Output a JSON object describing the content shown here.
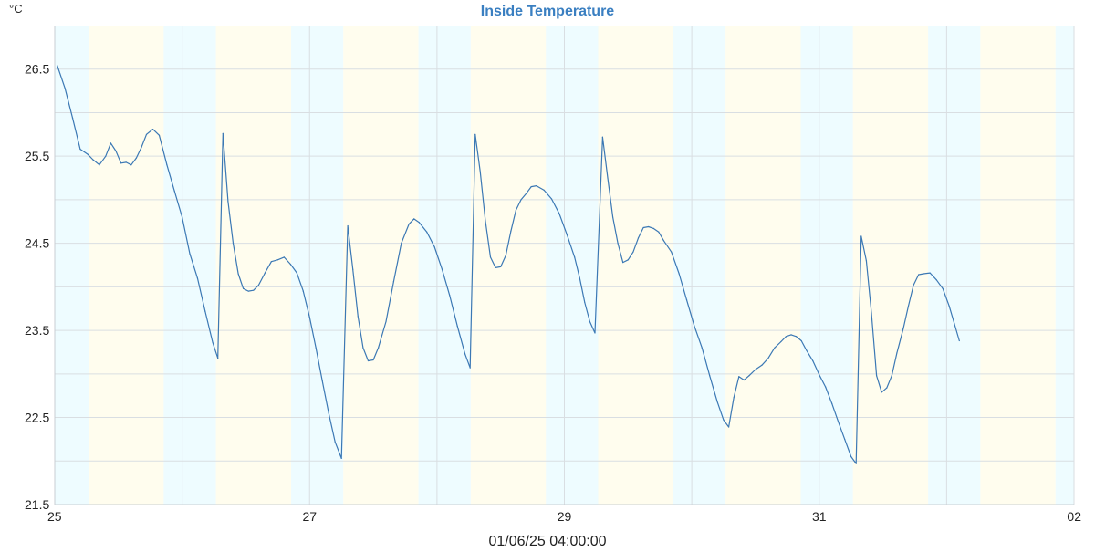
{
  "chart_data": {
    "type": "line",
    "title": "Inside Temperature",
    "unit_label": "°C",
    "footer_label": "01/06/25 04:00:00",
    "x_unit": "days since 25",
    "xlim": [
      0,
      8
    ],
    "ylim": [
      21.5,
      27
    ],
    "y_ticks": [
      {
        "value": 21.5,
        "label": "21.5"
      },
      {
        "value": 22.5,
        "label": "22.5"
      },
      {
        "value": 23.5,
        "label": "23.5"
      },
      {
        "value": 24.5,
        "label": "24.5"
      },
      {
        "value": 25.5,
        "label": "25.5"
      },
      {
        "value": 26.5,
        "label": "26.5"
      }
    ],
    "y_grid": [
      22,
      23,
      24,
      25,
      26
    ],
    "x_ticks": [
      {
        "value": 0,
        "label": "25"
      },
      {
        "value": 2,
        "label": "27"
      },
      {
        "value": 4,
        "label": "29"
      },
      {
        "value": 6,
        "label": "31"
      },
      {
        "value": 8,
        "label": "02"
      }
    ],
    "x_grid": [
      1,
      3,
      5,
      7
    ],
    "grid": true,
    "colors": {
      "line": "#3b78b4",
      "night": "#eefcff",
      "day": "#fffdee",
      "grid": "#d9dee2",
      "title": "#3a7fc1"
    },
    "bands": [
      {
        "start": 0,
        "end": 0.265,
        "kind": "night"
      },
      {
        "start": 0.265,
        "end": 0.855,
        "kind": "day"
      },
      {
        "start": 0.855,
        "end": 1.265,
        "kind": "night"
      },
      {
        "start": 1.265,
        "end": 1.855,
        "kind": "day"
      },
      {
        "start": 1.855,
        "end": 2.265,
        "kind": "night"
      },
      {
        "start": 2.265,
        "end": 2.855,
        "kind": "day"
      },
      {
        "start": 2.855,
        "end": 3.265,
        "kind": "night"
      },
      {
        "start": 3.265,
        "end": 3.855,
        "kind": "day"
      },
      {
        "start": 3.855,
        "end": 4.265,
        "kind": "night"
      },
      {
        "start": 4.265,
        "end": 4.855,
        "kind": "day"
      },
      {
        "start": 4.855,
        "end": 5.265,
        "kind": "night"
      },
      {
        "start": 5.265,
        "end": 5.855,
        "kind": "day"
      },
      {
        "start": 5.855,
        "end": 6.265,
        "kind": "night"
      },
      {
        "start": 6.265,
        "end": 6.855,
        "kind": "day"
      },
      {
        "start": 6.855,
        "end": 7.265,
        "kind": "night"
      },
      {
        "start": 7.265,
        "end": 7.855,
        "kind": "day"
      },
      {
        "start": 7.855,
        "end": 8.0,
        "kind": "night"
      }
    ],
    "series": [
      {
        "name": "Inside Temperature",
        "points": [
          [
            0.02,
            26.54
          ],
          [
            0.08,
            26.28
          ],
          [
            0.14,
            25.94
          ],
          [
            0.2,
            25.58
          ],
          [
            0.26,
            25.52
          ],
          [
            0.3,
            25.46
          ],
          [
            0.35,
            25.4
          ],
          [
            0.4,
            25.5
          ],
          [
            0.44,
            25.65
          ],
          [
            0.48,
            25.56
          ],
          [
            0.52,
            25.42
          ],
          [
            0.56,
            25.43
          ],
          [
            0.6,
            25.4
          ],
          [
            0.64,
            25.48
          ],
          [
            0.68,
            25.6
          ],
          [
            0.72,
            25.75
          ],
          [
            0.77,
            25.81
          ],
          [
            0.82,
            25.74
          ],
          [
            0.88,
            25.4
          ],
          [
            0.94,
            25.1
          ],
          [
            1.0,
            24.8
          ],
          [
            1.06,
            24.38
          ],
          [
            1.12,
            24.1
          ],
          [
            1.18,
            23.72
          ],
          [
            1.24,
            23.36
          ],
          [
            1.28,
            23.18
          ],
          [
            1.32,
            25.76
          ],
          [
            1.36,
            24.98
          ],
          [
            1.4,
            24.5
          ],
          [
            1.44,
            24.15
          ],
          [
            1.48,
            23.98
          ],
          [
            1.52,
            23.95
          ],
          [
            1.56,
            23.96
          ],
          [
            1.6,
            24.02
          ],
          [
            1.65,
            24.16
          ],
          [
            1.7,
            24.29
          ],
          [
            1.75,
            24.31
          ],
          [
            1.8,
            24.34
          ],
          [
            1.85,
            24.26
          ],
          [
            1.9,
            24.16
          ],
          [
            1.95,
            23.95
          ],
          [
            2.0,
            23.65
          ],
          [
            2.05,
            23.3
          ],
          [
            2.1,
            22.92
          ],
          [
            2.15,
            22.55
          ],
          [
            2.2,
            22.22
          ],
          [
            2.25,
            22.03
          ],
          [
            2.3,
            24.7
          ],
          [
            2.34,
            24.2
          ],
          [
            2.38,
            23.66
          ],
          [
            2.42,
            23.3
          ],
          [
            2.46,
            23.15
          ],
          [
            2.5,
            23.16
          ],
          [
            2.54,
            23.3
          ],
          [
            2.6,
            23.6
          ],
          [
            2.66,
            24.06
          ],
          [
            2.72,
            24.5
          ],
          [
            2.78,
            24.72
          ],
          [
            2.82,
            24.78
          ],
          [
            2.86,
            24.74
          ],
          [
            2.92,
            24.63
          ],
          [
            2.98,
            24.46
          ],
          [
            3.04,
            24.2
          ],
          [
            3.1,
            23.9
          ],
          [
            3.16,
            23.55
          ],
          [
            3.22,
            23.23
          ],
          [
            3.26,
            23.07
          ],
          [
            3.3,
            25.75
          ],
          [
            3.34,
            25.32
          ],
          [
            3.38,
            24.76
          ],
          [
            3.42,
            24.34
          ],
          [
            3.46,
            24.22
          ],
          [
            3.5,
            24.23
          ],
          [
            3.54,
            24.36
          ],
          [
            3.58,
            24.64
          ],
          [
            3.62,
            24.88
          ],
          [
            3.66,
            25.0
          ],
          [
            3.7,
            25.07
          ],
          [
            3.74,
            25.15
          ],
          [
            3.78,
            25.16
          ],
          [
            3.84,
            25.11
          ],
          [
            3.9,
            25.01
          ],
          [
            3.96,
            24.84
          ],
          [
            4.02,
            24.6
          ],
          [
            4.08,
            24.34
          ],
          [
            4.12,
            24.1
          ],
          [
            4.16,
            23.82
          ],
          [
            4.2,
            23.6
          ],
          [
            4.24,
            23.47
          ],
          [
            4.3,
            25.72
          ],
          [
            4.34,
            25.25
          ],
          [
            4.38,
            24.8
          ],
          [
            4.42,
            24.5
          ],
          [
            4.46,
            24.28
          ],
          [
            4.5,
            24.31
          ],
          [
            4.54,
            24.4
          ],
          [
            4.58,
            24.56
          ],
          [
            4.62,
            24.68
          ],
          [
            4.66,
            24.69
          ],
          [
            4.7,
            24.67
          ],
          [
            4.74,
            24.63
          ],
          [
            4.78,
            24.53
          ],
          [
            4.84,
            24.4
          ],
          [
            4.9,
            24.15
          ],
          [
            4.96,
            23.85
          ],
          [
            5.02,
            23.55
          ],
          [
            5.08,
            23.3
          ],
          [
            5.14,
            22.98
          ],
          [
            5.2,
            22.68
          ],
          [
            5.25,
            22.47
          ],
          [
            5.29,
            22.39
          ],
          [
            5.33,
            22.73
          ],
          [
            5.37,
            22.97
          ],
          [
            5.41,
            22.93
          ],
          [
            5.45,
            22.98
          ],
          [
            5.5,
            23.05
          ],
          [
            5.55,
            23.1
          ],
          [
            5.6,
            23.18
          ],
          [
            5.65,
            23.3
          ],
          [
            5.7,
            23.37
          ],
          [
            5.74,
            23.43
          ],
          [
            5.78,
            23.45
          ],
          [
            5.82,
            23.43
          ],
          [
            5.86,
            23.38
          ],
          [
            5.9,
            23.27
          ],
          [
            5.95,
            23.15
          ],
          [
            6.0,
            22.99
          ],
          [
            6.05,
            22.85
          ],
          [
            6.1,
            22.66
          ],
          [
            6.15,
            22.45
          ],
          [
            6.2,
            22.25
          ],
          [
            6.25,
            22.05
          ],
          [
            6.29,
            21.97
          ],
          [
            6.33,
            24.58
          ],
          [
            6.37,
            24.3
          ],
          [
            6.41,
            23.7
          ],
          [
            6.45,
            22.98
          ],
          [
            6.49,
            22.79
          ],
          [
            6.53,
            22.84
          ],
          [
            6.57,
            22.98
          ],
          [
            6.61,
            23.24
          ],
          [
            6.66,
            23.52
          ],
          [
            6.7,
            23.78
          ],
          [
            6.74,
            24.02
          ],
          [
            6.78,
            24.14
          ],
          [
            6.82,
            24.15
          ],
          [
            6.87,
            24.16
          ],
          [
            6.92,
            24.08
          ],
          [
            6.97,
            23.98
          ],
          [
            7.02,
            23.78
          ],
          [
            7.06,
            23.58
          ],
          [
            7.1,
            23.38
          ]
        ]
      }
    ]
  }
}
